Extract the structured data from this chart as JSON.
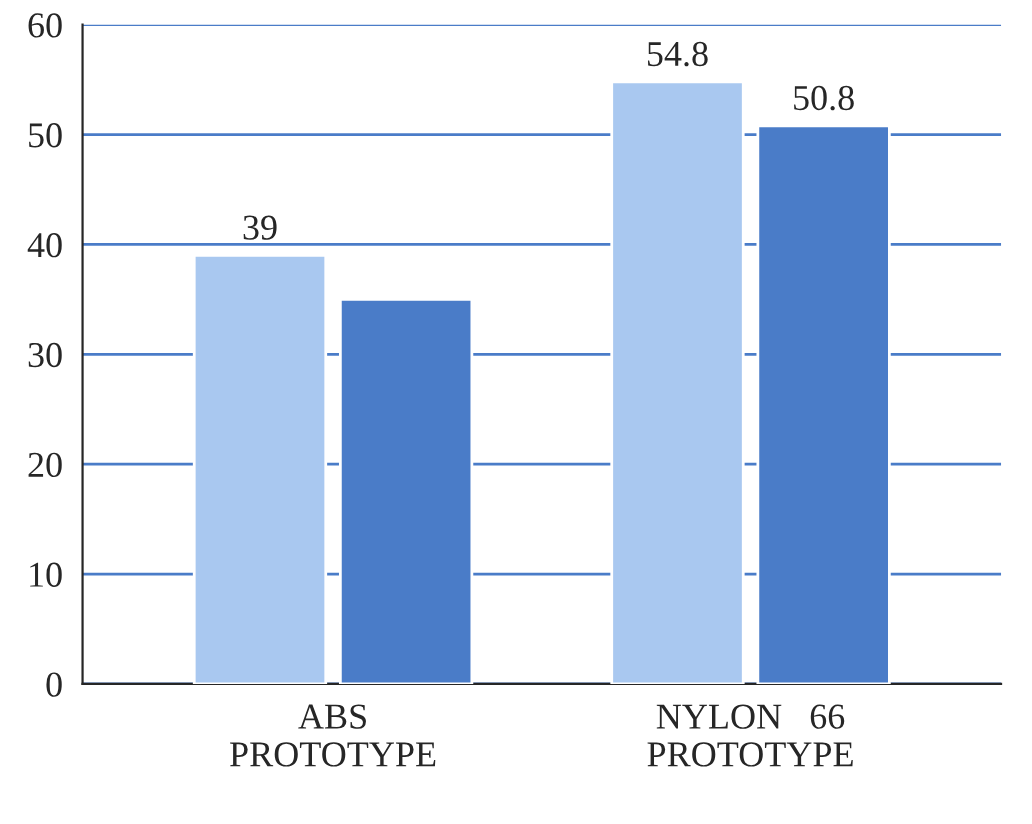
{
  "chart_data": {
    "type": "bar",
    "categories": [
      "ABS\nPROTOTYPE",
      "NYLON   66\nPROTOTYPE"
    ],
    "series": [
      {
        "color": "#a9c8f0",
        "values": [
          39,
          54.8
        ],
        "value_labels": [
          "39",
          "54.8"
        ]
      },
      {
        "color": "#4a7cc8",
        "values": [
          35,
          50.8
        ],
        "value_labels": [
          null,
          "50.8"
        ]
      }
    ],
    "ylim": [
      0,
      60
    ],
    "yticks": [
      0,
      10,
      20,
      30,
      40,
      50,
      60
    ],
    "grid": "y",
    "legend": false
  }
}
